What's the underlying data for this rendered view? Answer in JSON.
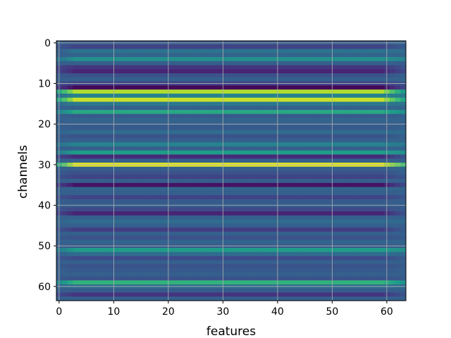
{
  "chart_data": {
    "type": "heatmap",
    "title": "",
    "xlabel": "features",
    "ylabel": "channels",
    "xlim": [
      -0.5,
      63.5
    ],
    "ylim": [
      63.5,
      -0.5
    ],
    "x_ticks": [
      0,
      10,
      20,
      30,
      40,
      50,
      60
    ],
    "y_ticks": [
      0,
      10,
      20,
      30,
      40,
      50,
      60
    ],
    "grid": true,
    "colormap": "viridis",
    "n_rows": 64,
    "n_cols": 64,
    "row_levels": [
      0.27,
      0.2,
      0.38,
      0.32,
      0.5,
      0.3,
      0.15,
      0.1,
      0.25,
      0.3,
      0.2,
      0.02,
      0.88,
      0.45,
      0.92,
      0.4,
      0.3,
      0.6,
      0.28,
      0.32,
      0.3,
      0.28,
      0.35,
      0.25,
      0.3,
      0.45,
      0.3,
      0.55,
      0.12,
      0.3,
      0.95,
      0.3,
      0.25,
      0.2,
      0.3,
      0.05,
      0.32,
      0.3,
      0.2,
      0.28,
      0.3,
      0.22,
      0.1,
      0.3,
      0.35,
      0.3,
      0.18,
      0.3,
      0.25,
      0.32,
      0.28,
      0.55,
      0.35,
      0.22,
      0.3,
      0.25,
      0.28,
      0.3,
      0.25,
      0.65,
      0.35,
      0.28,
      0.15,
      0.3
    ],
    "left_edge_levels": [
      0.3,
      0.25,
      0.3,
      0.3,
      0.4,
      0.3,
      0.2,
      0.2,
      0.28,
      0.3,
      0.25,
      0.15,
      0.6,
      0.35,
      0.62,
      0.35,
      0.3,
      0.45,
      0.3,
      0.3,
      0.3,
      0.3,
      0.32,
      0.28,
      0.3,
      0.38,
      0.3,
      0.42,
      0.2,
      0.3,
      0.62,
      0.3,
      0.28,
      0.25,
      0.3,
      0.18,
      0.3,
      0.3,
      0.25,
      0.3,
      0.3,
      0.25,
      0.2,
      0.3,
      0.32,
      0.3,
      0.25,
      0.3,
      0.28,
      0.3,
      0.3,
      0.42,
      0.32,
      0.26,
      0.3,
      0.28,
      0.3,
      0.3,
      0.28,
      0.48,
      0.32,
      0.3,
      0.22,
      0.3
    ],
    "right_edge_levels": [
      0.32,
      0.28,
      0.35,
      0.32,
      0.45,
      0.3,
      0.25,
      0.22,
      0.3,
      0.32,
      0.25,
      0.2,
      0.55,
      0.4,
      0.6,
      0.38,
      0.32,
      0.5,
      0.3,
      0.32,
      0.3,
      0.3,
      0.35,
      0.3,
      0.32,
      0.4,
      0.32,
      0.5,
      0.25,
      0.3,
      0.7,
      0.32,
      0.3,
      0.26,
      0.3,
      0.22,
      0.32,
      0.3,
      0.26,
      0.3,
      0.3,
      0.28,
      0.24,
      0.3,
      0.34,
      0.3,
      0.28,
      0.3,
      0.28,
      0.32,
      0.3,
      0.5,
      0.34,
      0.28,
      0.3,
      0.28,
      0.3,
      0.3,
      0.28,
      0.52,
      0.34,
      0.3,
      0.25,
      0.3
    ]
  }
}
